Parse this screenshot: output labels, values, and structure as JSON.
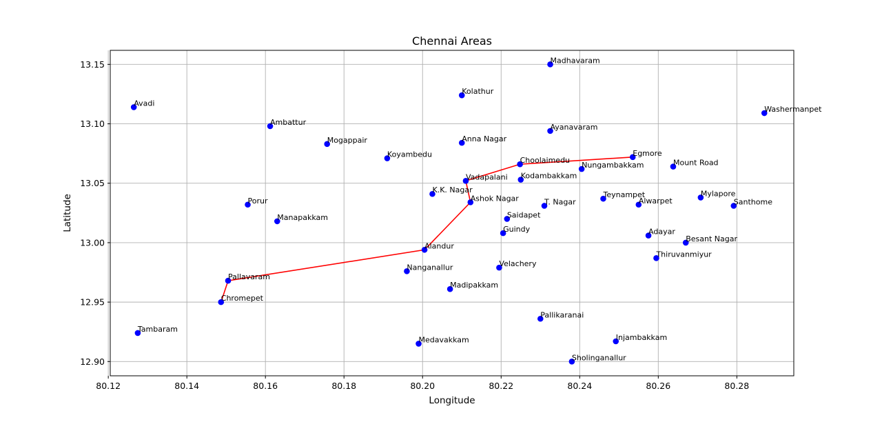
{
  "chart_data": {
    "type": "scatter",
    "title": "Chennai Areas",
    "xlabel": "Longitude",
    "ylabel": "Latitude",
    "xlim": [
      80.1205,
      80.2945
    ],
    "ylim": [
      12.888,
      13.1618
    ],
    "xticks": [
      80.12,
      80.14,
      80.16,
      80.18,
      80.2,
      80.22,
      80.24,
      80.26,
      80.28
    ],
    "xtick_labels": [
      "80.12",
      "80.14",
      "80.16",
      "80.18",
      "80.20",
      "80.22",
      "80.24",
      "80.26",
      "80.28"
    ],
    "yticks": [
      12.9,
      12.95,
      13.0,
      13.05,
      13.1,
      13.15
    ],
    "ytick_labels": [
      "12.90",
      "12.95",
      "13.00",
      "13.05",
      "13.10",
      "13.15"
    ],
    "grid": true,
    "point_color": "#0000ff",
    "route_color": "#ff0000",
    "points": [
      {
        "name": "Madhavaram",
        "x": 80.2325,
        "y": 13.15
      },
      {
        "name": "Kolathur",
        "x": 80.21,
        "y": 13.124
      },
      {
        "name": "Avadi",
        "x": 80.1265,
        "y": 13.114
      },
      {
        "name": "Washermanpet",
        "x": 80.287,
        "y": 13.109
      },
      {
        "name": "Ambattur",
        "x": 80.1612,
        "y": 13.098
      },
      {
        "name": "Ayanavaram",
        "x": 80.2325,
        "y": 13.094
      },
      {
        "name": "Mogappair",
        "x": 80.1757,
        "y": 13.083
      },
      {
        "name": "Anna Nagar",
        "x": 80.21,
        "y": 13.084
      },
      {
        "name": "Koyambedu",
        "x": 80.191,
        "y": 13.071
      },
      {
        "name": "Egmore",
        "x": 80.2535,
        "y": 13.072
      },
      {
        "name": "Choolaimedu",
        "x": 80.2248,
        "y": 13.066
      },
      {
        "name": "Mount Road",
        "x": 80.2638,
        "y": 13.064
      },
      {
        "name": "Nungambakkam",
        "x": 80.2405,
        "y": 13.062
      },
      {
        "name": "Vadapalani",
        "x": 80.211,
        "y": 13.052
      },
      {
        "name": "Kodambakkam",
        "x": 80.225,
        "y": 13.053
      },
      {
        "name": "K.K. Nagar",
        "x": 80.2025,
        "y": 13.041
      },
      {
        "name": "Teynampet",
        "x": 80.246,
        "y": 13.037
      },
      {
        "name": "Mylapore",
        "x": 80.2708,
        "y": 13.038
      },
      {
        "name": "Ashok Nagar",
        "x": 80.2122,
        "y": 13.034
      },
      {
        "name": "Porur",
        "x": 80.1555,
        "y": 13.032
      },
      {
        "name": "Alwarpet",
        "x": 80.255,
        "y": 13.032
      },
      {
        "name": "T. Nagar",
        "x": 80.231,
        "y": 13.031
      },
      {
        "name": "Santhome",
        "x": 80.2792,
        "y": 13.031
      },
      {
        "name": "Saidapet",
        "x": 80.2215,
        "y": 13.02
      },
      {
        "name": "Manapakkam",
        "x": 80.163,
        "y": 13.018
      },
      {
        "name": "Guindy",
        "x": 80.2205,
        "y": 13.008
      },
      {
        "name": "Adayar",
        "x": 80.2575,
        "y": 13.006
      },
      {
        "name": "Besant Nagar",
        "x": 80.267,
        "y": 13.0
      },
      {
        "name": "Alandur",
        "x": 80.2005,
        "y": 12.994
      },
      {
        "name": "Thiruvanmiyur",
        "x": 80.2595,
        "y": 12.987
      },
      {
        "name": "Velachery",
        "x": 80.2195,
        "y": 12.979
      },
      {
        "name": "Nanganallur",
        "x": 80.196,
        "y": 12.976
      },
      {
        "name": "Pallavaram",
        "x": 80.1505,
        "y": 12.968
      },
      {
        "name": "Madipakkam",
        "x": 80.207,
        "y": 12.961
      },
      {
        "name": "Chromepet",
        "x": 80.1487,
        "y": 12.95
      },
      {
        "name": "Pallikaranai",
        "x": 80.23,
        "y": 12.936
      },
      {
        "name": "Tambaram",
        "x": 80.1275,
        "y": 12.924
      },
      {
        "name": "Injambakkam",
        "x": 80.2492,
        "y": 12.917
      },
      {
        "name": "Medavakkam",
        "x": 80.199,
        "y": 12.915
      },
      {
        "name": "Sholinganallur",
        "x": 80.238,
        "y": 12.9
      }
    ],
    "route": [
      "Chromepet",
      "Pallavaram",
      "Alandur",
      "Ashok Nagar",
      "Vadapalani",
      "Choolaimedu",
      "Egmore"
    ]
  }
}
